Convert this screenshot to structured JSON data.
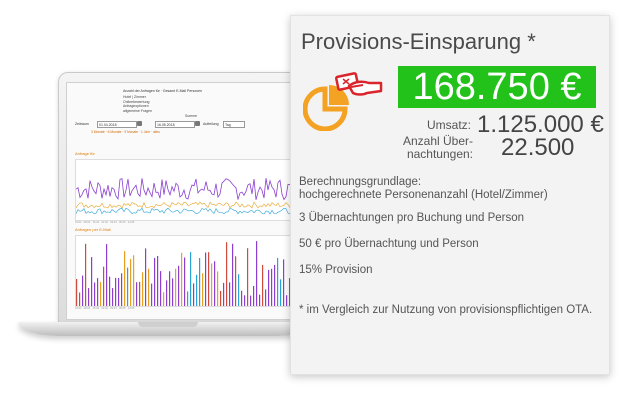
{
  "laptop_screen": {
    "title": "Anzahl der Anfragen für · Gesamt E-Mail Personen",
    "menu": [
      "Hotel | Zimmer",
      "Onlinebewertung",
      "Anfrageoptionen",
      "allgemeine Fragen"
    ],
    "menu_right": "Summe",
    "filter_from_label": "Zeitraum",
    "filter_from_value": "01.04.2018",
    "filter_to_value": "16.05.2018",
    "filter_group_label": "Aufteilung",
    "filter_group_value": "Tag",
    "quick_ranges": "3 Monate · 6 Monate · 9 Monate · 1 Jahr · alles",
    "chart1_label": "Anfrage für",
    "chart2_label": "Anfragen per E-Mail",
    "x_axis_ticks": "01.04 · 08.04 · 15.04 · 22.04 · 29.04 · 06.05 · 13.05",
    "colors": {
      "series_a": "#8a3fd1",
      "series_b": "#e7a020",
      "series_c": "#2aa2d6",
      "series_d": "#d24a3a"
    }
  },
  "card": {
    "title": "Provisions-Einsparung *",
    "savings_value": "168.750 €",
    "umsatz_label": "Umsatz:",
    "umsatz_value": "1.125.000 €",
    "nights_label_line1": "Anzahl Über-",
    "nights_label_line2": "nachtungen:",
    "nights_value": "22.500",
    "basis_label": "Berechnungsgrundlage:",
    "basis_text": "hochgerechnete Personenanzahl (Hotel/Zimmer)",
    "assumption_1": "3 Übernachtungen pro Buchung und Person",
    "assumption_2": "50 € pro Übernachtung und Person",
    "assumption_3": "15% Provision",
    "footnote": "* im Vergleich zur Nutzung von provisionspflichtigen OTA.",
    "colors": {
      "accent_green": "#22c21a",
      "icon_orange": "#f4a223",
      "icon_red": "#d9262c"
    },
    "icon": "pie-chart-hand-card-icon"
  }
}
